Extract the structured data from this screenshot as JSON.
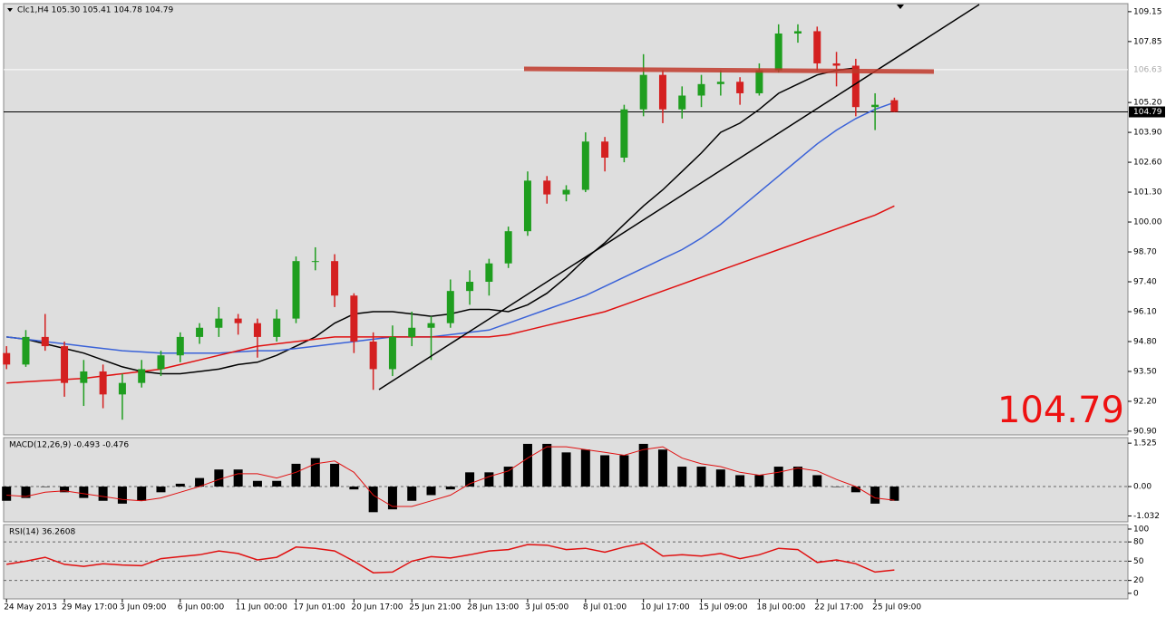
{
  "chart_data": [
    {
      "type": "candlestick",
      "info": "Clc1,H4  105.30 105.41 104.78 104.79",
      "open": [
        94.3,
        93.8,
        95.0,
        94.6,
        93.0,
        93.5,
        92.5,
        93.0,
        93.6,
        94.2,
        95.0,
        95.4,
        95.8,
        95.6,
        95.0,
        95.8,
        98.3,
        98.3,
        96.8,
        94.8,
        93.6,
        95.0,
        95.4,
        95.6,
        97.0,
        97.4,
        98.2,
        99.6,
        101.8,
        101.2,
        101.4,
        103.5,
        102.8,
        104.9,
        106.4,
        104.9,
        105.5,
        106.0,
        106.1,
        105.6,
        106.6,
        108.2,
        108.3,
        106.9,
        106.8,
        105.0,
        105.3
      ],
      "high": [
        94.6,
        95.3,
        96.0,
        94.8,
        94.0,
        93.8,
        93.4,
        94.0,
        94.4,
        95.2,
        95.6,
        96.3,
        96.0,
        95.8,
        96.2,
        98.5,
        98.9,
        98.6,
        96.9,
        95.2,
        95.5,
        96.1,
        95.9,
        97.5,
        97.9,
        98.4,
        99.8,
        102.2,
        102.0,
        101.6,
        103.9,
        103.7,
        105.1,
        107.3,
        106.6,
        105.9,
        106.4,
        106.6,
        106.3,
        106.9,
        108.6,
        108.6,
        108.5,
        107.4,
        107.1,
        105.6,
        105.41
      ],
      "low": [
        93.6,
        93.7,
        94.4,
        92.4,
        92.0,
        91.9,
        91.4,
        92.8,
        93.3,
        93.9,
        94.7,
        95.0,
        95.1,
        94.1,
        94.8,
        95.6,
        97.9,
        96.3,
        94.3,
        92.7,
        93.3,
        94.6,
        94.0,
        95.4,
        96.4,
        96.8,
        98.0,
        99.4,
        100.8,
        100.9,
        101.3,
        102.2,
        102.6,
        104.6,
        104.3,
        104.5,
        105.0,
        105.5,
        105.1,
        105.5,
        106.5,
        107.8,
        106.6,
        105.9,
        104.6,
        104.0,
        104.78
      ],
      "close": [
        93.8,
        95.0,
        94.6,
        93.0,
        93.5,
        92.5,
        93.0,
        93.6,
        94.2,
        95.0,
        95.4,
        95.8,
        95.6,
        95.0,
        95.8,
        98.3,
        98.3,
        96.8,
        94.8,
        93.6,
        95.0,
        95.4,
        95.6,
        97.0,
        97.4,
        98.2,
        99.6,
        101.8,
        101.2,
        101.4,
        103.5,
        102.8,
        104.9,
        106.4,
        104.9,
        105.5,
        106.0,
        106.1,
        105.6,
        106.6,
        108.2,
        108.3,
        106.9,
        106.8,
        105.0,
        105.1,
        104.79
      ],
      "up_color": "#1f9e1f",
      "down_color": "#d42020",
      "series": [
        {
          "color": "#000000",
          "values": [
            95.0,
            94.9,
            94.7,
            94.5,
            94.3,
            94.0,
            93.7,
            93.5,
            93.4,
            93.4,
            93.5,
            93.6,
            93.8,
            93.9,
            94.2,
            94.6,
            95.0,
            95.6,
            96.0,
            96.1,
            96.1,
            96.0,
            95.9,
            96.0,
            96.2,
            96.2,
            96.1,
            96.4,
            96.9,
            97.6,
            98.4,
            99.1,
            99.9,
            100.7,
            101.4,
            102.2,
            103.0,
            103.9,
            104.3,
            104.9,
            105.6,
            106.0,
            106.4,
            106.6,
            106.7,
            null,
            null
          ]
        },
        {
          "color": "#3a62d8",
          "values": [
            95.0,
            94.9,
            94.8,
            94.7,
            94.6,
            94.5,
            94.4,
            94.35,
            94.3,
            94.3,
            94.3,
            94.3,
            94.35,
            94.4,
            94.4,
            94.5,
            94.6,
            94.7,
            94.8,
            94.9,
            95.0,
            95.0,
            95.0,
            95.1,
            95.2,
            95.3,
            95.6,
            95.9,
            96.2,
            96.5,
            96.8,
            97.2,
            97.6,
            98.0,
            98.4,
            98.8,
            99.3,
            99.9,
            100.6,
            101.3,
            102.0,
            102.7,
            103.4,
            104.0,
            104.5,
            104.9,
            105.2
          ]
        },
        {
          "color": "#e01010",
          "values": [
            93.0,
            93.05,
            93.1,
            93.15,
            93.2,
            93.3,
            93.4,
            93.5,
            93.6,
            93.8,
            94.0,
            94.2,
            94.4,
            94.6,
            94.7,
            94.8,
            94.9,
            95.0,
            95.0,
            95.0,
            95.0,
            95.0,
            95.0,
            95.0,
            95.0,
            95.0,
            95.1,
            95.3,
            95.5,
            95.7,
            95.9,
            96.1,
            96.4,
            96.7,
            97.0,
            97.3,
            97.6,
            97.9,
            98.2,
            98.5,
            98.8,
            99.1,
            99.4,
            99.7,
            100.0,
            100.3,
            100.7
          ]
        }
      ],
      "ylim": [
        90.74,
        109.5
      ],
      "yticks": [
        {
          "value": 109.15,
          "label": "109.15"
        },
        {
          "value": 107.85,
          "label": "107.85"
        },
        {
          "value": 105.2,
          "label": "105.20"
        },
        {
          "value": 103.9,
          "label": "103.90"
        },
        {
          "value": 102.6,
          "label": "102.60"
        },
        {
          "value": 101.3,
          "label": "101.30"
        },
        {
          "value": 100.0,
          "label": "100.00"
        },
        {
          "value": 98.7,
          "label": "98.70"
        },
        {
          "value": 97.4,
          "label": "97.40"
        },
        {
          "value": 96.1,
          "label": "96.10"
        },
        {
          "value": 94.8,
          "label": "94.80"
        },
        {
          "value": 93.5,
          "label": "93.50"
        },
        {
          "value": 92.2,
          "label": "92.20"
        },
        {
          "value": 90.9,
          "label": "90.90"
        }
      ],
      "level": {
        "value": 106.63,
        "label": "106.63"
      },
      "current": 104.79,
      "xlim": [
        -0.15,
        58.1
      ],
      "xticks": [
        {
          "value": 0,
          "label": "24 May 2013"
        },
        {
          "value": 3,
          "label": "29 May 17:00"
        },
        {
          "value": 6,
          "label": "3 Jun 09:00"
        },
        {
          "value": 9,
          "label": "6 Jun 00:00"
        },
        {
          "value": 12,
          "label": "11 Jun 00:00"
        },
        {
          "value": 15,
          "label": "17 Jun 01:00"
        },
        {
          "value": 18,
          "label": "20 Jun 17:00"
        },
        {
          "value": 21,
          "label": "25 Jun 21:00"
        },
        {
          "value": 24,
          "label": "28 Jun 13:00"
        },
        {
          "value": 27,
          "label": "3 Jul 05:00"
        },
        {
          "value": 30,
          "label": "8 Jul 01:00"
        },
        {
          "value": 33,
          "label": "10 Jul 17:00"
        },
        {
          "value": 36,
          "label": "15 Jul 09:00"
        },
        {
          "value": 39,
          "label": "18 Jul 00:00"
        },
        {
          "value": 42,
          "label": "22 Jul 17:00"
        },
        {
          "value": 45,
          "label": "25 Jul 09:00"
        }
      ]
    },
    {
      "type": "histogram",
      "title": "MACD(12,26,9) -0.493 -0.476",
      "color": "#000000",
      "values": [
        -0.5,
        -0.4,
        0.0,
        -0.2,
        -0.4,
        -0.5,
        -0.6,
        -0.5,
        -0.2,
        0.1,
        0.3,
        0.6,
        0.6,
        0.2,
        0.2,
        0.8,
        1.0,
        0.8,
        -0.1,
        -0.9,
        -0.8,
        -0.5,
        -0.3,
        -0.1,
        0.5,
        0.5,
        0.7,
        1.5,
        1.5,
        1.2,
        1.3,
        1.1,
        1.1,
        1.5,
        1.3,
        0.7,
        0.7,
        0.6,
        0.4,
        0.4,
        0.7,
        0.7,
        0.4,
        0.0,
        -0.2,
        -0.6,
        -0.5
      ],
      "series": [
        {
          "color": "#e01010",
          "values": [
            -0.3,
            -0.35,
            -0.2,
            -0.15,
            -0.25,
            -0.35,
            -0.45,
            -0.5,
            -0.4,
            -0.2,
            0.0,
            0.25,
            0.45,
            0.45,
            0.3,
            0.5,
            0.8,
            0.9,
            0.5,
            -0.3,
            -0.7,
            -0.7,
            -0.5,
            -0.3,
            0.1,
            0.35,
            0.55,
            1.0,
            1.4,
            1.4,
            1.3,
            1.2,
            1.1,
            1.3,
            1.4,
            1.0,
            0.8,
            0.7,
            0.5,
            0.4,
            0.5,
            0.65,
            0.55,
            0.25,
            0.0,
            -0.4,
            -0.48
          ]
        }
      ],
      "ylim": [
        -1.24,
        1.72
      ],
      "yticks": [
        1.525,
        {
          "value": 0,
          "label": "0.00"
        },
        -1.032
      ]
    },
    {
      "type": "line",
      "title": "RSI(14) 36.2608",
      "color": "#e01010",
      "values": [
        45,
        50,
        56,
        45,
        42,
        46,
        44,
        43,
        54,
        57,
        60,
        66,
        62,
        52,
        56,
        72,
        70,
        66,
        50,
        32,
        33,
        50,
        57,
        55,
        60,
        66,
        68,
        76,
        75,
        68,
        70,
        64,
        72,
        78,
        58,
        60,
        58,
        62,
        54,
        60,
        70,
        68,
        48,
        52,
        46,
        33,
        36.2608
      ],
      "ylim": [
        -8.7,
        107
      ],
      "yticks": [
        100,
        80,
        50,
        20,
        0
      ],
      "grid": [
        80,
        50,
        20
      ]
    }
  ]
}
